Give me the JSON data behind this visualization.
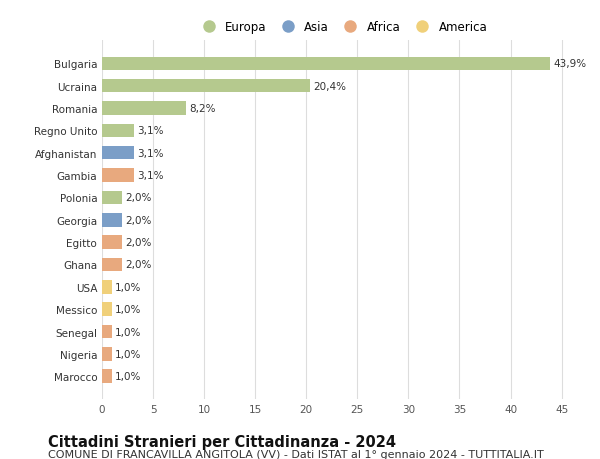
{
  "countries": [
    "Bulgaria",
    "Ucraina",
    "Romania",
    "Regno Unito",
    "Afghanistan",
    "Gambia",
    "Polonia",
    "Georgia",
    "Egitto",
    "Ghana",
    "USA",
    "Messico",
    "Senegal",
    "Nigeria",
    "Marocco"
  ],
  "values": [
    43.9,
    20.4,
    8.2,
    3.1,
    3.1,
    3.1,
    2.0,
    2.0,
    2.0,
    2.0,
    1.0,
    1.0,
    1.0,
    1.0,
    1.0
  ],
  "labels": [
    "43,9%",
    "20,4%",
    "8,2%",
    "3,1%",
    "3,1%",
    "3,1%",
    "2,0%",
    "2,0%",
    "2,0%",
    "2,0%",
    "1,0%",
    "1,0%",
    "1,0%",
    "1,0%",
    "1,0%"
  ],
  "continents": [
    "Europa",
    "Europa",
    "Europa",
    "Europa",
    "Asia",
    "Africa",
    "Europa",
    "Asia",
    "Africa",
    "Africa",
    "America",
    "America",
    "Africa",
    "Africa",
    "Africa"
  ],
  "colors": {
    "Europa": "#b5c98e",
    "Asia": "#7b9ec7",
    "Africa": "#e8a97e",
    "America": "#f0d07a"
  },
  "legend_order": [
    "Europa",
    "Asia",
    "Africa",
    "America"
  ],
  "xlim": [
    0,
    47
  ],
  "xticks": [
    0,
    5,
    10,
    15,
    20,
    25,
    30,
    35,
    40,
    45
  ],
  "title": "Cittadini Stranieri per Cittadinanza - 2024",
  "subtitle": "COMUNE DI FRANCAVILLA ANGITOLA (VV) - Dati ISTAT al 1° gennaio 2024 - TUTTITALIA.IT",
  "bg_color": "#ffffff",
  "grid_color": "#dddddd",
  "bar_height": 0.6,
  "title_fontsize": 10.5,
  "subtitle_fontsize": 8,
  "label_fontsize": 7.5,
  "tick_fontsize": 7.5,
  "legend_fontsize": 8.5
}
